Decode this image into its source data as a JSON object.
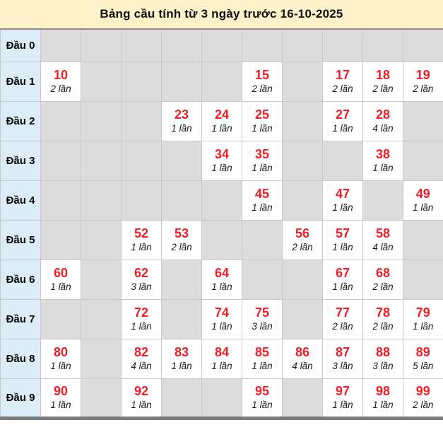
{
  "title": "Bảng cầu tính từ 3 ngày trước 16-10-2025",
  "colors": {
    "title_bg": "#FCF1C9",
    "row_header_bg": "#DCEDF7",
    "empty_cell_bg": "#DCDCDC",
    "filled_cell_bg": "#FFFFFF",
    "number_red": "#F11E28",
    "count_text": "#1B1B1B",
    "frame_border": "#8E8E8E",
    "cell_border": "#C9C9C9"
  },
  "table": {
    "columns": 10,
    "rows": [
      {
        "label": "Đầu 0",
        "cells": [
          null,
          null,
          null,
          null,
          null,
          null,
          null,
          null,
          null,
          null
        ]
      },
      {
        "label": "Đầu 1",
        "cells": [
          {
            "number": "10",
            "count": "2 lần"
          },
          null,
          null,
          null,
          null,
          {
            "number": "15",
            "count": "2 lần"
          },
          null,
          {
            "number": "17",
            "count": "2 lần"
          },
          {
            "number": "18",
            "count": "2 lần"
          },
          {
            "number": "19",
            "count": "2 lần"
          }
        ]
      },
      {
        "label": "Đầu 2",
        "cells": [
          null,
          null,
          null,
          {
            "number": "23",
            "count": "1 lần"
          },
          {
            "number": "24",
            "count": "1 lần"
          },
          {
            "number": "25",
            "count": "1 lần"
          },
          null,
          {
            "number": "27",
            "count": "1 lần"
          },
          {
            "number": "28",
            "count": "4 lần"
          },
          null
        ]
      },
      {
        "label": "Đầu 3",
        "cells": [
          null,
          null,
          null,
          null,
          {
            "number": "34",
            "count": "1 lần"
          },
          {
            "number": "35",
            "count": "1 lần"
          },
          null,
          null,
          {
            "number": "38",
            "count": "1 lần"
          },
          null
        ]
      },
      {
        "label": "Đầu 4",
        "cells": [
          null,
          null,
          null,
          null,
          null,
          {
            "number": "45",
            "count": "1 lần"
          },
          null,
          {
            "number": "47",
            "count": "1 lần"
          },
          null,
          {
            "number": "49",
            "count": "1 lần"
          }
        ]
      },
      {
        "label": "Đầu 5",
        "cells": [
          null,
          null,
          {
            "number": "52",
            "count": "1 lần"
          },
          {
            "number": "53",
            "count": "2 lần"
          },
          null,
          null,
          {
            "number": "56",
            "count": "2 lần"
          },
          {
            "number": "57",
            "count": "1 lần"
          },
          {
            "number": "58",
            "count": "4 lần"
          },
          null
        ]
      },
      {
        "label": "Đầu 6",
        "cells": [
          {
            "number": "60",
            "count": "1 lần"
          },
          null,
          {
            "number": "62",
            "count": "3 lần"
          },
          null,
          {
            "number": "64",
            "count": "1 lần"
          },
          null,
          null,
          {
            "number": "67",
            "count": "1 lần"
          },
          {
            "number": "68",
            "count": "2 lần"
          },
          null
        ]
      },
      {
        "label": "Đầu 7",
        "cells": [
          null,
          null,
          {
            "number": "72",
            "count": "1 lần"
          },
          null,
          {
            "number": "74",
            "count": "1 lần"
          },
          {
            "number": "75",
            "count": "3 lần"
          },
          null,
          {
            "number": "77",
            "count": "2 lần"
          },
          {
            "number": "78",
            "count": "2 lần"
          },
          {
            "number": "79",
            "count": "1 lần"
          }
        ]
      },
      {
        "label": "Đầu 8",
        "cells": [
          {
            "number": "80",
            "count": "1 lần"
          },
          null,
          {
            "number": "82",
            "count": "4 lần"
          },
          {
            "number": "83",
            "count": "1 lần"
          },
          {
            "number": "84",
            "count": "1 lần"
          },
          {
            "number": "85",
            "count": "1 lần"
          },
          {
            "number": "86",
            "count": "4 lần"
          },
          {
            "number": "87",
            "count": "3 lần"
          },
          {
            "number": "88",
            "count": "3 lần"
          },
          {
            "number": "89",
            "count": "5 lần"
          }
        ]
      },
      {
        "label": "Đầu 9",
        "cells": [
          {
            "number": "90",
            "count": "1 lần"
          },
          null,
          {
            "number": "92",
            "count": "1 lần"
          },
          null,
          null,
          {
            "number": "95",
            "count": "1 lần"
          },
          null,
          {
            "number": "97",
            "count": "1 lần"
          },
          {
            "number": "98",
            "count": "1 lần"
          },
          {
            "number": "99",
            "count": "2 lần"
          }
        ]
      }
    ]
  }
}
